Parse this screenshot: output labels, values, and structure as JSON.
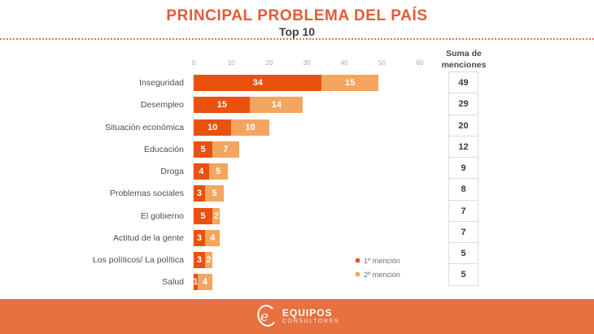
{
  "title": "PRINCIPAL PROBLEMA DEL PAÍS",
  "subtitle": "Top 10",
  "sum_header_line1": "Suma de",
  "sum_header_line2": "menciones",
  "footer": {
    "brand": "EQUIPOS",
    "brand_sub": "CONSULTORES"
  },
  "colors": {
    "accent_title": "#E25B36",
    "bar_first_mention": "#E8520E",
    "bar_second_mention": "#F4A55F",
    "footer_bg": "#E7713F",
    "sum_box_border": "#DBDBDB",
    "dotted_rule": "#E8763F"
  },
  "chart_data": {
    "type": "bar",
    "orientation": "horizontal",
    "stacked": true,
    "title": "PRINCIPAL PROBLEMA DEL PAÍS",
    "subtitle": "Top 10",
    "categories": [
      "Inseguridad",
      "Desempleo",
      "Situación económica",
      "Educación",
      "Droga",
      "Problemas sociales",
      "El gobierno",
      "Actitud de la gente",
      "Los políticos/ La política",
      "Salud"
    ],
    "series": [
      {
        "name": "1º mención",
        "color": "#E8520E",
        "values": [
          34,
          15,
          10,
          5,
          4,
          3,
          5,
          3,
          3,
          1
        ]
      },
      {
        "name": "2º mención",
        "color": "#F4A55F",
        "values": [
          15,
          14,
          10,
          7,
          5,
          5,
          2,
          4,
          2,
          4
        ]
      }
    ],
    "sums": [
      49,
      29,
      20,
      12,
      9,
      8,
      7,
      7,
      5,
      5
    ],
    "sum_column_header": "Suma de menciones",
    "x_ticks": [
      0,
      10,
      20,
      30,
      40,
      50,
      60
    ],
    "xlim": [
      0,
      60
    ],
    "grid": false,
    "legend_position": "bottom-right"
  }
}
